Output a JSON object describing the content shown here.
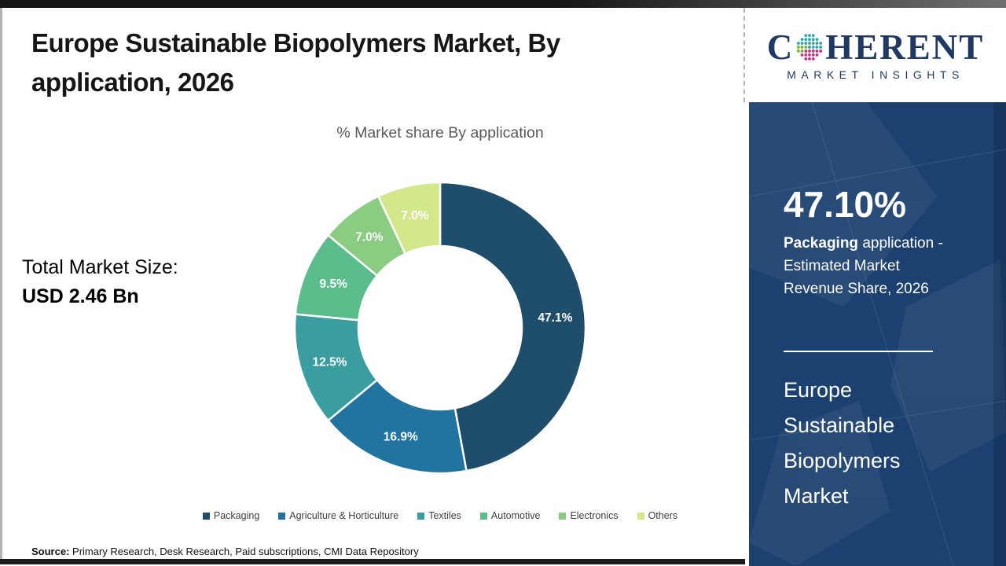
{
  "header": {
    "title_line1": "Europe Sustainable Biopolymers Market, By",
    "title_line2": "application, 2026"
  },
  "logo": {
    "brand_c": "C",
    "brand_rest": "HERENT",
    "tagline": "MARKET INSIGHTS",
    "globe_icon": "dotted-globe",
    "brand_navy": "#1f3864",
    "globe_colors": {
      "teal": "#2aa7ab",
      "green": "#74b62f",
      "pink": "#c2347f"
    }
  },
  "main": {
    "chart_title": "% Market share By application",
    "total_market_label": "Total Market Size:",
    "total_market_value": "USD 2.46 Bn",
    "source_label": "Source:",
    "source_text": " Primary Research, Desk Research, Paid subscriptions, CMI Data Repository"
  },
  "chart_data": {
    "type": "pie",
    "subtype": "donut",
    "title": "% Market share By application",
    "start_angle_deg": 0,
    "direction": "clockwise",
    "categories": [
      "Packaging",
      "Agriculture & Horticulture",
      "Textiles",
      "Automotive",
      "Electronics",
      "Others"
    ],
    "values": [
      47.1,
      16.9,
      12.5,
      9.5,
      7.0,
      7.0
    ],
    "labels": [
      "47.1%",
      "16.9%",
      "12.5%",
      "9.5%",
      "7.0%",
      "7.0%"
    ],
    "colors": [
      "#1f4e6c",
      "#2173a0",
      "#3a9ea0",
      "#5bbd8b",
      "#8acd82",
      "#d3e78b"
    ],
    "legend_position": "bottom"
  },
  "sidebar": {
    "bg_color": "#1c4170",
    "highlight_value": "47.10%",
    "highlight_bold": "Packaging",
    "highlight_after_bold": " application -",
    "highlight_line2": "Estimated Market",
    "highlight_line3": "Revenue Share, 2026",
    "market_name_lines": [
      "Europe",
      "Sustainable",
      "Biopolymers",
      "Market"
    ]
  }
}
